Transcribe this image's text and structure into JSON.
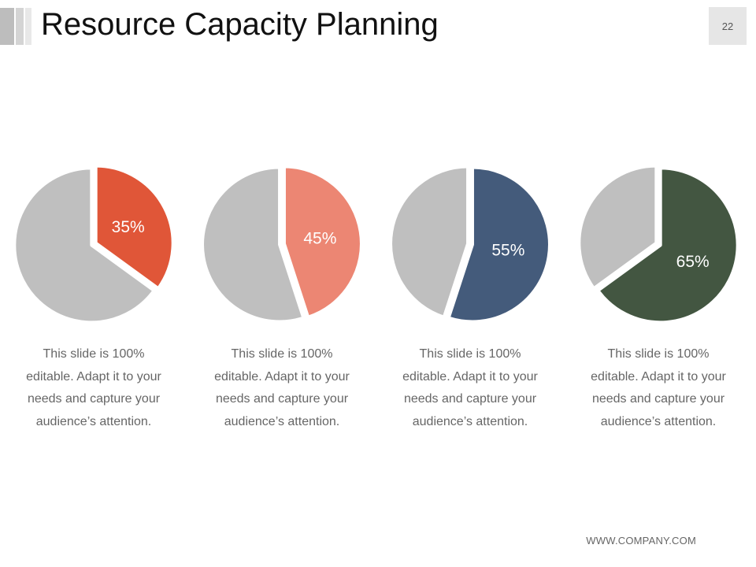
{
  "slide": {
    "title": "Resource Capacity Planning",
    "page_number": "22",
    "footer": "WWW.COMPANY.COM"
  },
  "chart_data": [
    {
      "type": "pie",
      "values": [
        35,
        65
      ],
      "labels": [
        "35%",
        ""
      ],
      "colors": [
        "#e05638",
        "#bfbfbf"
      ],
      "caption": [
        "This slide is 100%",
        "editable. Adapt it to your",
        "needs and capture your",
        "audience’s attention."
      ]
    },
    {
      "type": "pie",
      "values": [
        45,
        55
      ],
      "labels": [
        "45%",
        ""
      ],
      "colors": [
        "#ec8673",
        "#bfbfbf"
      ],
      "caption": [
        "This slide is 100%",
        "editable. Adapt it to your",
        "needs and capture your",
        "audience’s attention."
      ]
    },
    {
      "type": "pie",
      "values": [
        55,
        45
      ],
      "labels": [
        "55%",
        ""
      ],
      "colors": [
        "#445b7b",
        "#bfbfbf"
      ],
      "caption": [
        "This slide is 100%",
        "editable. Adapt it to your",
        "needs and capture your",
        "audience’s attention."
      ]
    },
    {
      "type": "pie",
      "values": [
        65,
        35
      ],
      "labels": [
        "65%",
        ""
      ],
      "colors": [
        "#435641",
        "#bfbfbf"
      ],
      "caption": [
        "This slide is 100%",
        "editable. Adapt it to your",
        "needs and capture your",
        "audience’s attention."
      ]
    }
  ]
}
